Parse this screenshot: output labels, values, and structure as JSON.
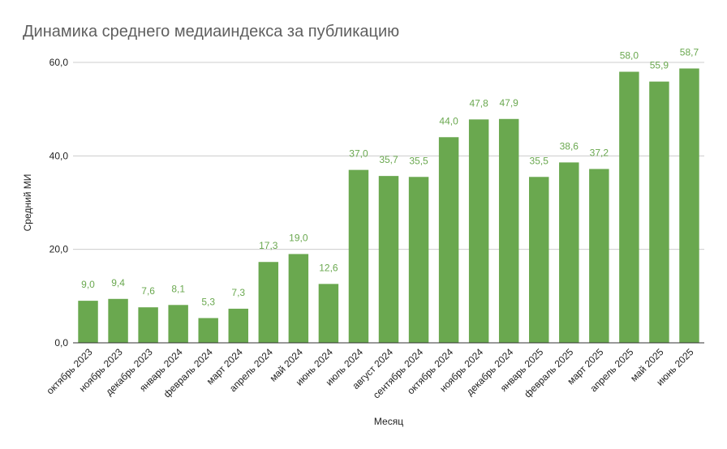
{
  "chart_data": {
    "type": "bar",
    "title": "Динамика среднего медиаиндекса за публикацию",
    "xlabel": "Месяц",
    "ylabel": "Средний МИ",
    "categories": [
      "октябрь 2023",
      "ноябрь 2023",
      "декабрь 2023",
      "январь 2024",
      "февраль 2024",
      "март 2024",
      "апрель 2024",
      "май 2024",
      "июнь 2024",
      "июль 2024",
      "август 2024",
      "сентябрь 2024",
      "октябрь 2024",
      "ноябрь 2024",
      "декабрь 2024",
      "январь 2025",
      "февраль 2025",
      "март 2025",
      "апрель 2025",
      "май 2025",
      "июнь 2025"
    ],
    "values": [
      9.0,
      9.4,
      7.6,
      8.1,
      5.3,
      7.3,
      17.3,
      19.0,
      12.6,
      37.0,
      35.7,
      35.5,
      44.0,
      47.8,
      47.9,
      35.5,
      38.6,
      37.2,
      58.0,
      55.9,
      58.7
    ],
    "data_labels": [
      "9,0",
      "9,4",
      "7,6",
      "8,1",
      "5,3",
      "7,3",
      "17,3",
      "19,0",
      "12,6",
      "37,0",
      "35,7",
      "35,5",
      "44,0",
      "47,8",
      "47,9",
      "35,5",
      "38,6",
      "37,2",
      "58,0",
      "55,9",
      "58,7"
    ],
    "yticks": [
      0,
      20,
      40,
      60
    ],
    "ytick_labels": [
      "0,0",
      "20,0",
      "40,0",
      "60,0"
    ],
    "ylim": [
      0,
      60
    ],
    "grid": true,
    "legend": "none",
    "bar_color": "#6aa84f",
    "label_color": "#6aa84f"
  }
}
